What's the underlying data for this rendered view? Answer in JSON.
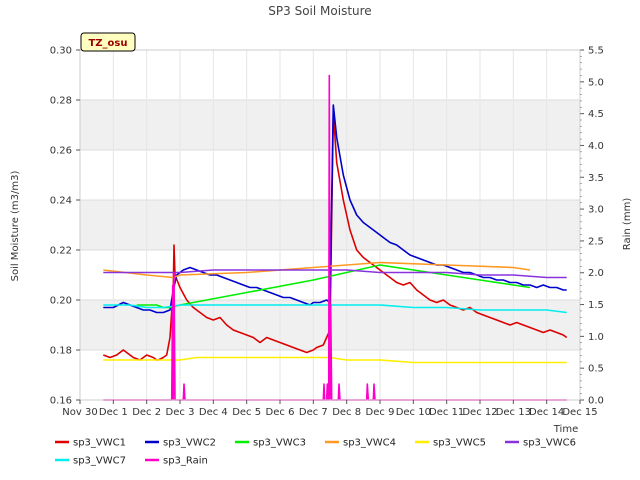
{
  "chart_data": {
    "type": "line",
    "title": "SP3 Soil Moisture",
    "badge": "TZ_osu",
    "xlabel": "Time",
    "ylabel": "Soil Moisture (m3/m3)",
    "y2label": "Rain (mm)",
    "ylim": [
      0.16,
      0.3
    ],
    "y2lim": [
      0.0,
      5.5
    ],
    "xlim": [
      0,
      15
    ],
    "x_ticks": [
      {
        "x": 0,
        "label": "Nov 30"
      },
      {
        "x": 1,
        "label": "Dec 1"
      },
      {
        "x": 2,
        "label": "Dec 2"
      },
      {
        "x": 3,
        "label": "Dec 3"
      },
      {
        "x": 4,
        "label": "Dec 4"
      },
      {
        "x": 5,
        "label": "Dec 5"
      },
      {
        "x": 6,
        "label": "Dec 6"
      },
      {
        "x": 7,
        "label": "Dec 7"
      },
      {
        "x": 8,
        "label": "Dec 8"
      },
      {
        "x": 9,
        "label": "Dec 9"
      },
      {
        "x": 10,
        "label": "Dec 10"
      },
      {
        "x": 11,
        "label": "Dec 11"
      },
      {
        "x": 12,
        "label": "Dec 12"
      },
      {
        "x": 13,
        "label": "Dec 13"
      },
      {
        "x": 14,
        "label": "Dec 14"
      },
      {
        "x": 15,
        "label": "Dec 15"
      }
    ],
    "y_ticks": [
      "0.16",
      "0.18",
      "0.20",
      "0.22",
      "0.24",
      "0.26",
      "0.28",
      "0.30"
    ],
    "y2_ticks": [
      "0.0",
      "0.5",
      "1.0",
      "1.5",
      "2.0",
      "2.5",
      "3.0",
      "3.5",
      "4.0",
      "4.5",
      "5.0",
      "5.5"
    ],
    "grid": true,
    "legend_position": "bottom",
    "series": [
      {
        "name": "sp3_VWC1",
        "color": "#dd0000",
        "axis": "left",
        "points": [
          [
            0.7,
            0.178
          ],
          [
            0.9,
            0.177
          ],
          [
            1.1,
            0.178
          ],
          [
            1.3,
            0.18
          ],
          [
            1.5,
            0.178
          ],
          [
            1.6,
            0.177
          ],
          [
            1.8,
            0.176
          ],
          [
            2.0,
            0.178
          ],
          [
            2.2,
            0.177
          ],
          [
            2.3,
            0.176
          ],
          [
            2.35,
            0.176
          ],
          [
            2.5,
            0.177
          ],
          [
            2.6,
            0.178
          ],
          [
            2.7,
            0.185
          ],
          [
            2.8,
            0.205
          ],
          [
            2.82,
            0.222
          ],
          [
            2.85,
            0.21
          ],
          [
            3.0,
            0.205
          ],
          [
            3.2,
            0.2
          ],
          [
            3.4,
            0.197
          ],
          [
            3.6,
            0.195
          ],
          [
            3.8,
            0.193
          ],
          [
            4.0,
            0.192
          ],
          [
            4.2,
            0.193
          ],
          [
            4.4,
            0.19
          ],
          [
            4.6,
            0.188
          ],
          [
            4.8,
            0.187
          ],
          [
            5.0,
            0.186
          ],
          [
            5.2,
            0.185
          ],
          [
            5.4,
            0.183
          ],
          [
            5.6,
            0.185
          ],
          [
            5.8,
            0.184
          ],
          [
            6.0,
            0.183
          ],
          [
            6.2,
            0.182
          ],
          [
            6.4,
            0.181
          ],
          [
            6.6,
            0.18
          ],
          [
            6.8,
            0.179
          ],
          [
            7.0,
            0.18
          ],
          [
            7.1,
            0.181
          ],
          [
            7.3,
            0.182
          ],
          [
            7.5,
            0.188
          ],
          [
            7.6,
            0.275
          ],
          [
            7.7,
            0.255
          ],
          [
            7.9,
            0.24
          ],
          [
            8.1,
            0.228
          ],
          [
            8.3,
            0.22
          ],
          [
            8.5,
            0.217
          ],
          [
            8.7,
            0.215
          ],
          [
            8.9,
            0.213
          ],
          [
            9.1,
            0.211
          ],
          [
            9.3,
            0.209
          ],
          [
            9.5,
            0.207
          ],
          [
            9.7,
            0.206
          ],
          [
            9.9,
            0.207
          ],
          [
            10.1,
            0.204
          ],
          [
            10.3,
            0.202
          ],
          [
            10.5,
            0.2
          ],
          [
            10.7,
            0.199
          ],
          [
            10.9,
            0.2
          ],
          [
            11.1,
            0.198
          ],
          [
            11.3,
            0.197
          ],
          [
            11.5,
            0.196
          ],
          [
            11.7,
            0.197
          ],
          [
            11.9,
            0.195
          ],
          [
            12.1,
            0.194
          ],
          [
            12.3,
            0.193
          ],
          [
            12.5,
            0.192
          ],
          [
            12.7,
            0.191
          ],
          [
            12.9,
            0.19
          ],
          [
            13.1,
            0.191
          ],
          [
            13.3,
            0.19
          ],
          [
            13.5,
            0.189
          ],
          [
            13.7,
            0.188
          ],
          [
            13.9,
            0.187
          ],
          [
            14.1,
            0.188
          ],
          [
            14.3,
            0.187
          ],
          [
            14.5,
            0.186
          ],
          [
            14.6,
            0.185
          ]
        ]
      },
      {
        "name": "sp3_VWC2",
        "color": "#0000cc",
        "axis": "left",
        "points": [
          [
            0.7,
            0.197
          ],
          [
            1.0,
            0.197
          ],
          [
            1.3,
            0.199
          ],
          [
            1.5,
            0.198
          ],
          [
            1.7,
            0.197
          ],
          [
            1.9,
            0.196
          ],
          [
            2.1,
            0.196
          ],
          [
            2.3,
            0.195
          ],
          [
            2.5,
            0.195
          ],
          [
            2.7,
            0.196
          ],
          [
            2.8,
            0.204
          ],
          [
            2.9,
            0.21
          ],
          [
            3.1,
            0.212
          ],
          [
            3.3,
            0.213
          ],
          [
            3.5,
            0.212
          ],
          [
            3.7,
            0.211
          ],
          [
            3.9,
            0.21
          ],
          [
            4.1,
            0.21
          ],
          [
            4.3,
            0.209
          ],
          [
            4.5,
            0.208
          ],
          [
            4.7,
            0.207
          ],
          [
            4.9,
            0.206
          ],
          [
            5.1,
            0.205
          ],
          [
            5.3,
            0.205
          ],
          [
            5.5,
            0.204
          ],
          [
            5.7,
            0.203
          ],
          [
            5.9,
            0.202
          ],
          [
            6.1,
            0.201
          ],
          [
            6.3,
            0.201
          ],
          [
            6.5,
            0.2
          ],
          [
            6.7,
            0.199
          ],
          [
            6.9,
            0.198
          ],
          [
            7.0,
            0.199
          ],
          [
            7.2,
            0.199
          ],
          [
            7.4,
            0.2
          ],
          [
            7.5,
            0.199
          ],
          [
            7.6,
            0.278
          ],
          [
            7.7,
            0.265
          ],
          [
            7.9,
            0.25
          ],
          [
            8.1,
            0.24
          ],
          [
            8.3,
            0.234
          ],
          [
            8.5,
            0.231
          ],
          [
            8.7,
            0.229
          ],
          [
            8.9,
            0.227
          ],
          [
            9.1,
            0.225
          ],
          [
            9.3,
            0.223
          ],
          [
            9.5,
            0.222
          ],
          [
            9.7,
            0.22
          ],
          [
            9.9,
            0.218
          ],
          [
            10.1,
            0.217
          ],
          [
            10.3,
            0.216
          ],
          [
            10.5,
            0.215
          ],
          [
            10.7,
            0.214
          ],
          [
            10.9,
            0.214
          ],
          [
            11.1,
            0.213
          ],
          [
            11.3,
            0.212
          ],
          [
            11.5,
            0.211
          ],
          [
            11.7,
            0.211
          ],
          [
            11.9,
            0.21
          ],
          [
            12.1,
            0.209
          ],
          [
            12.3,
            0.209
          ],
          [
            12.5,
            0.208
          ],
          [
            12.7,
            0.208
          ],
          [
            12.9,
            0.207
          ],
          [
            13.1,
            0.207
          ],
          [
            13.3,
            0.206
          ],
          [
            13.5,
            0.206
          ],
          [
            13.7,
            0.205
          ],
          [
            13.9,
            0.206
          ],
          [
            14.1,
            0.205
          ],
          [
            14.3,
            0.205
          ],
          [
            14.5,
            0.204
          ],
          [
            14.6,
            0.204
          ]
        ]
      },
      {
        "name": "sp3_VWC3",
        "color": "#00ee00",
        "axis": "left",
        "points": [
          [
            1.7,
            0.198
          ],
          [
            2.3,
            0.198
          ],
          [
            2.5,
            0.197
          ],
          [
            2.7,
            0.197
          ],
          [
            3.0,
            0.198
          ],
          [
            5.0,
            0.203
          ],
          [
            7.0,
            0.208
          ],
          [
            9.0,
            0.214
          ],
          [
            10.0,
            0.212
          ],
          [
            11.0,
            0.21
          ],
          [
            12.0,
            0.208
          ],
          [
            13.0,
            0.206
          ],
          [
            13.5,
            0.205
          ]
        ]
      },
      {
        "name": "sp3_VWC4",
        "color": "#ff9922",
        "axis": "left",
        "points": [
          [
            0.7,
            0.212
          ],
          [
            2.0,
            0.21
          ],
          [
            2.8,
            0.209
          ],
          [
            3.0,
            0.21
          ],
          [
            5.0,
            0.211
          ],
          [
            7.0,
            0.213
          ],
          [
            9.0,
            0.215
          ],
          [
            11.0,
            0.214
          ],
          [
            13.0,
            0.213
          ],
          [
            13.5,
            0.212
          ]
        ]
      },
      {
        "name": "sp3_VWC5",
        "color": "#ffee00",
        "axis": "left",
        "points": [
          [
            0.7,
            0.176
          ],
          [
            1.5,
            0.176
          ],
          [
            2.0,
            0.176
          ],
          [
            2.5,
            0.176
          ],
          [
            3.0,
            0.176
          ],
          [
            3.5,
            0.177
          ],
          [
            4.0,
            0.177
          ],
          [
            5.0,
            0.177
          ],
          [
            6.0,
            0.177
          ],
          [
            7.0,
            0.177
          ],
          [
            7.5,
            0.177
          ],
          [
            8.0,
            0.176
          ],
          [
            8.5,
            0.176
          ],
          [
            9.0,
            0.176
          ],
          [
            10.0,
            0.175
          ],
          [
            11.0,
            0.175
          ],
          [
            12.0,
            0.175
          ],
          [
            13.0,
            0.175
          ],
          [
            14.0,
            0.175
          ],
          [
            14.6,
            0.175
          ]
        ]
      },
      {
        "name": "sp3_VWC6",
        "color": "#8833dd",
        "axis": "left",
        "points": [
          [
            0.7,
            0.211
          ],
          [
            2.0,
            0.211
          ],
          [
            3.0,
            0.211
          ],
          [
            4.0,
            0.212
          ],
          [
            5.0,
            0.212
          ],
          [
            6.0,
            0.212
          ],
          [
            7.0,
            0.212
          ],
          [
            8.0,
            0.212
          ],
          [
            9.0,
            0.211
          ],
          [
            10.0,
            0.211
          ],
          [
            11.0,
            0.211
          ],
          [
            12.0,
            0.21
          ],
          [
            13.0,
            0.21
          ],
          [
            14.0,
            0.209
          ],
          [
            14.6,
            0.209
          ]
        ]
      },
      {
        "name": "sp3_VWC7",
        "color": "#00eeee",
        "axis": "left",
        "points": [
          [
            0.7,
            0.198
          ],
          [
            1.5,
            0.198
          ],
          [
            2.0,
            0.197
          ],
          [
            2.5,
            0.197
          ],
          [
            3.0,
            0.198
          ],
          [
            4.0,
            0.198
          ],
          [
            5.0,
            0.198
          ],
          [
            6.0,
            0.198
          ],
          [
            7.0,
            0.198
          ],
          [
            8.0,
            0.198
          ],
          [
            9.0,
            0.198
          ],
          [
            10.0,
            0.197
          ],
          [
            11.0,
            0.197
          ],
          [
            12.0,
            0.196
          ],
          [
            13.0,
            0.196
          ],
          [
            14.0,
            0.196
          ],
          [
            14.6,
            0.195
          ]
        ]
      },
      {
        "name": "sp3_Rain",
        "color": "#ff00cc",
        "axis": "right",
        "points": [
          [
            0.7,
            0.0
          ],
          [
            2.75,
            0.0
          ],
          [
            2.78,
            1.8
          ],
          [
            2.8,
            0.0
          ],
          [
            2.82,
            2.0
          ],
          [
            2.85,
            0.0
          ],
          [
            3.1,
            0.0
          ],
          [
            3.12,
            0.25
          ],
          [
            3.15,
            0.0
          ],
          [
            7.3,
            0.0
          ],
          [
            7.32,
            0.25
          ],
          [
            7.34,
            0.0
          ],
          [
            7.4,
            0.0
          ],
          [
            7.42,
            0.25
          ],
          [
            7.44,
            0.0
          ],
          [
            7.46,
            0.0
          ],
          [
            7.48,
            5.1
          ],
          [
            7.5,
            0.0
          ],
          [
            7.52,
            1.5
          ],
          [
            7.55,
            0.0
          ],
          [
            7.75,
            0.0
          ],
          [
            7.77,
            0.25
          ],
          [
            7.8,
            0.0
          ],
          [
            8.6,
            0.0
          ],
          [
            8.62,
            0.25
          ],
          [
            8.65,
            0.0
          ],
          [
            8.8,
            0.0
          ],
          [
            8.82,
            0.25
          ],
          [
            8.85,
            0.0
          ],
          [
            14.6,
            0.0
          ]
        ]
      }
    ]
  }
}
